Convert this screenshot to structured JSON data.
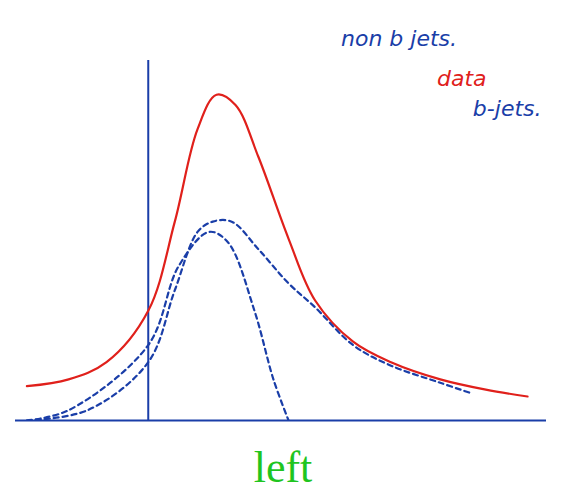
{
  "chart_data": {
    "type": "line",
    "caption": "left",
    "caption_color": "#1fc51f",
    "tick_labels": false,
    "xlim": [
      -3.5,
      10.5
    ],
    "ylim": [
      0,
      10.5
    ],
    "xticks": [],
    "yticks": [],
    "series": [
      {
        "name": "data",
        "color": "#e0201b",
        "line_style": "solid",
        "x": [
          -3.2,
          -2.1,
          -1.1,
          0,
          0.7,
          1.3,
          1.8,
          2.3,
          2.9,
          3.7,
          4.4,
          5.4,
          6.4,
          7.7,
          8.9,
          10.0
        ],
        "values": [
          1.0,
          1.2,
          1.7,
          3.2,
          5.8,
          8.5,
          9.5,
          9.2,
          7.7,
          5.3,
          3.5,
          2.3,
          1.7,
          1.2,
          0.9,
          0.7
        ]
      },
      {
        "name": "b-jets.",
        "color": "#1a3ea8",
        "line_style": "dashed",
        "x": [
          -3.2,
          -1.6,
          0,
          0.7,
          1.3,
          1.7,
          2.2,
          2.9,
          3.7,
          4.4,
          5.4,
          6.4,
          7.7,
          8.5
        ],
        "values": [
          0,
          0.3,
          1.7,
          3.8,
          5.5,
          5.8,
          5.8,
          5.0,
          4.0,
          3.3,
          2.2,
          1.6,
          1.1,
          0.8
        ]
      },
      {
        "name": "non b jets.",
        "color": "#1a3ea8",
        "line_style": "dashed",
        "x": [
          -3.2,
          -2.1,
          0,
          0.8,
          1.6,
          2.1,
          2.8,
          3.3,
          3.7
        ],
        "values": [
          0,
          0.3,
          2.2,
          4.5,
          5.5,
          5.2,
          3.2,
          1.2,
          0
        ]
      }
    ]
  }
}
